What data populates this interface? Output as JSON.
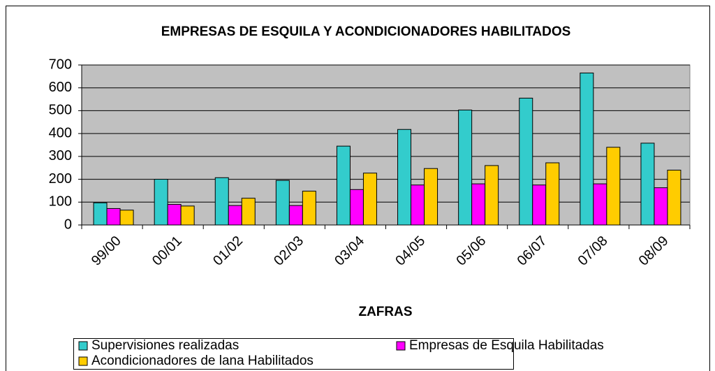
{
  "chart_data": {
    "type": "bar",
    "title": "EMPRESAS DE ESQUILA Y ACONDICIONADORES HABILITADOS",
    "x_label": "ZAFRAS",
    "categories": [
      "99/00",
      "00/01",
      "01/02",
      "02/03",
      "03/04",
      "04/05",
      "05/06",
      "06/07",
      "07/08",
      "08/09"
    ],
    "series": [
      {
        "name": "Supervisiones realizadas",
        "color": "#33cccc",
        "values": [
          97,
          200,
          207,
          195,
          345,
          418,
          503,
          555,
          665,
          358
        ]
      },
      {
        "name": "Empresas de Esquila Habilitadas",
        "color": "#ff00ff",
        "values": [
          72,
          90,
          85,
          85,
          155,
          175,
          180,
          175,
          180,
          163
        ]
      },
      {
        "name": "Acondicionadores de lana Habilitados",
        "color": "#ffcc00",
        "values": [
          65,
          83,
          117,
          148,
          227,
          247,
          260,
          272,
          340,
          240
        ]
      }
    ],
    "ylim": [
      0,
      700
    ],
    "yticks": [
      0,
      100,
      200,
      300,
      400,
      500,
      600,
      700
    ],
    "grid": true,
    "legend": "bottom"
  }
}
